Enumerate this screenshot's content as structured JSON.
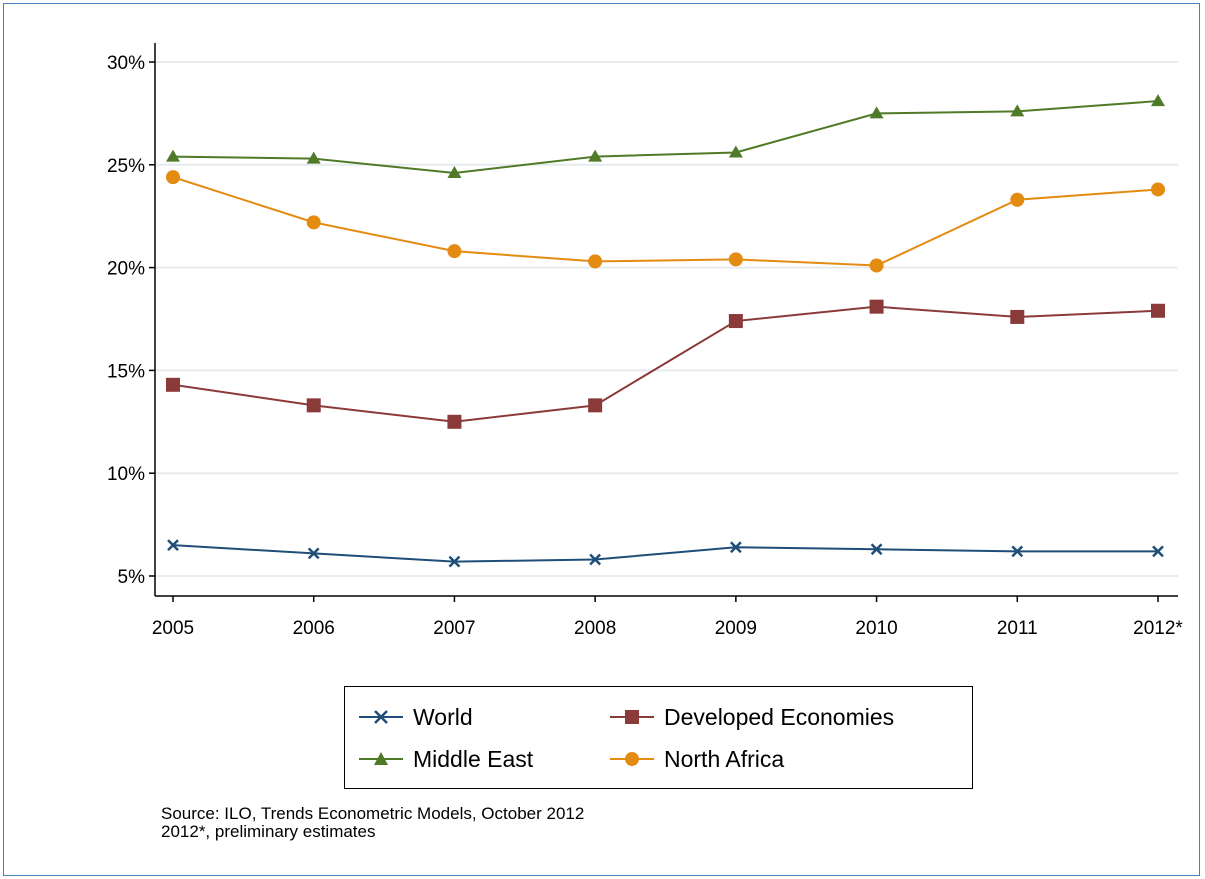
{
  "chart_data": {
    "type": "line",
    "categories": [
      "2005",
      "2006",
      "2007",
      "2008",
      "2009",
      "2010",
      "2011",
      "2012*"
    ],
    "ylim": [
      4.5,
      31
    ],
    "yticks": [
      5,
      10,
      15,
      20,
      25,
      30
    ],
    "ytick_labels": [
      "5%",
      "10%",
      "15%",
      "20%",
      "25%",
      "30%"
    ],
    "grid": true,
    "legend_position": "bottom",
    "series": [
      {
        "name": "World",
        "color": "#1f4e79",
        "marker": "x",
        "values": [
          6.5,
          6.1,
          5.7,
          5.8,
          6.4,
          6.3,
          6.2,
          6.2
        ]
      },
      {
        "name": "Developed Economies",
        "color": "#8b3a3a",
        "marker": "square",
        "values": [
          14.3,
          13.3,
          12.5,
          13.3,
          17.4,
          18.1,
          17.6,
          17.9
        ]
      },
      {
        "name": "Middle East",
        "color": "#4f7a28",
        "marker": "triangle",
        "values": [
          25.4,
          25.3,
          24.6,
          25.4,
          25.6,
          27.5,
          27.6,
          28.1
        ]
      },
      {
        "name": "North Africa",
        "color": "#e48b12",
        "marker": "circle",
        "values": [
          24.4,
          22.2,
          20.8,
          20.3,
          20.4,
          20.1,
          23.3,
          23.8
        ]
      }
    ]
  },
  "legend": {
    "world": "World",
    "developed": "Developed Economies",
    "middle_east": "Middle East",
    "north_africa": "North Africa"
  },
  "notes": {
    "source": "Source: ILO, Trends Econometric Models, October 2012",
    "estimate": "2012*, preliminary estimates"
  }
}
